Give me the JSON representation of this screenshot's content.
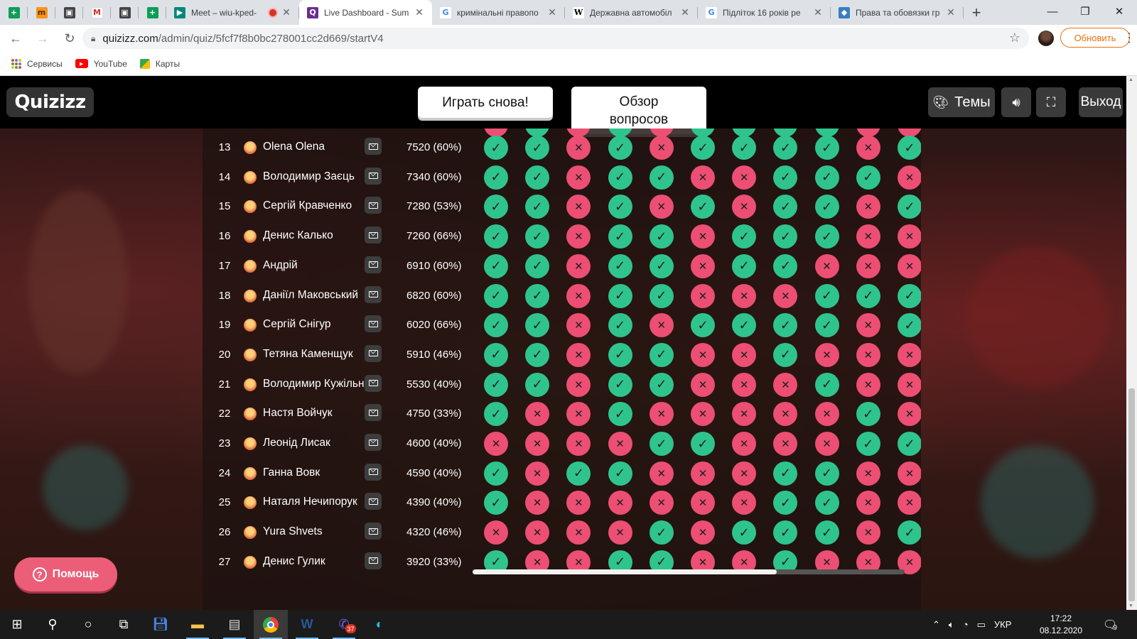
{
  "browser": {
    "tabs": [
      {
        "title": "Meet – wiu-kped-",
        "icon": "google-meet-icon",
        "recording": true
      },
      {
        "title": "Live Dashboard - Sum",
        "icon": "quizizz-icon",
        "active": true
      },
      {
        "title": "кримінальні правопо",
        "icon": "google-icon"
      },
      {
        "title": "Державна автомобіл",
        "icon": "wikipedia-icon"
      },
      {
        "title": "Підліток 16 років ре",
        "icon": "google-icon"
      },
      {
        "title": "Права та обовязки гр",
        "icon": "shield-icon"
      }
    ],
    "url_host": "quizizz.com",
    "url_path": "/admin/quiz/5fcf7f8b0bc278001cc2d669/startV4",
    "update_label": "Обновить",
    "bookmarks": [
      {
        "label": "Сервисы",
        "icon": "apps-grid-icon"
      },
      {
        "label": "YouTube",
        "icon": "youtube-icon"
      },
      {
        "label": "Карты",
        "icon": "maps-icon"
      }
    ]
  },
  "quizizz": {
    "logo": "Quizizz",
    "play_again": "Играть снова!",
    "review_questions": "Обзор вопросов",
    "themes": "Темы",
    "exit": "Выход",
    "help": "Помощь",
    "colors": {
      "correct": "#2fc48d",
      "incorrect": "#ec4f73"
    }
  },
  "rows": [
    {
      "rank": "13",
      "name": "Olena Olena",
      "score": "7520 (60%)",
      "answers": [
        1,
        1,
        0,
        1,
        0,
        1,
        1,
        1,
        1,
        0,
        1
      ]
    },
    {
      "rank": "14",
      "name": "Володимир Заєць",
      "score": "7340 (60%)",
      "answers": [
        1,
        1,
        0,
        1,
        1,
        0,
        0,
        1,
        1,
        1,
        0
      ]
    },
    {
      "rank": "15",
      "name": "Сергій Кравченко",
      "score": "7280 (53%)",
      "answers": [
        1,
        1,
        0,
        1,
        0,
        1,
        0,
        1,
        1,
        0,
        1
      ]
    },
    {
      "rank": "16",
      "name": "Денис Калько",
      "score": "7260 (66%)",
      "answers": [
        1,
        1,
        0,
        1,
        1,
        0,
        1,
        1,
        1,
        0,
        0
      ]
    },
    {
      "rank": "17",
      "name": "Андрій",
      "score": "6910 (60%)",
      "answers": [
        1,
        1,
        0,
        1,
        1,
        0,
        1,
        1,
        0,
        0,
        0
      ]
    },
    {
      "rank": "18",
      "name": "Даніїл Маковський",
      "score": "6820 (60%)",
      "answers": [
        1,
        1,
        0,
        1,
        1,
        0,
        0,
        0,
        1,
        1,
        1
      ]
    },
    {
      "rank": "19",
      "name": "Сергій Снігур",
      "score": "6020 (66%)",
      "answers": [
        1,
        1,
        0,
        1,
        0,
        1,
        1,
        1,
        1,
        0,
        1
      ]
    },
    {
      "rank": "20",
      "name": "Тетяна Каменщук",
      "score": "5910 (46%)",
      "answers": [
        1,
        1,
        0,
        1,
        1,
        0,
        0,
        1,
        0,
        0,
        0
      ]
    },
    {
      "rank": "21",
      "name": "Володимир Кужільн...",
      "score": "5530 (40%)",
      "answers": [
        1,
        1,
        0,
        1,
        1,
        0,
        0,
        0,
        1,
        0,
        0
      ]
    },
    {
      "rank": "22",
      "name": "Настя Войчук",
      "score": "4750 (33%)",
      "answers": [
        1,
        0,
        0,
        1,
        0,
        0,
        0,
        0,
        0,
        1,
        0
      ]
    },
    {
      "rank": "23",
      "name": "Леонід Лисак",
      "score": "4600 (40%)",
      "answers": [
        0,
        0,
        0,
        0,
        1,
        1,
        0,
        0,
        0,
        1,
        1
      ]
    },
    {
      "rank": "24",
      "name": "Ганна Вовк",
      "score": "4590 (40%)",
      "answers": [
        1,
        0,
        1,
        1,
        0,
        0,
        0,
        1,
        1,
        0,
        0
      ]
    },
    {
      "rank": "25",
      "name": "Наталя Нечипорук",
      "score": "4390 (40%)",
      "answers": [
        1,
        0,
        0,
        0,
        0,
        0,
        0,
        1,
        1,
        0,
        0
      ]
    },
    {
      "rank": "26",
      "name": "Yura Shvets",
      "score": "4320 (46%)",
      "answers": [
        0,
        0,
        0,
        0,
        1,
        0,
        1,
        1,
        1,
        0,
        1
      ]
    },
    {
      "rank": "27",
      "name": "Денис Гулик",
      "score": "3920 (33%)",
      "answers": [
        1,
        0,
        0,
        1,
        1,
        0,
        0,
        1,
        0,
        0,
        0
      ]
    }
  ],
  "peek_row_answers": [
    0,
    1,
    0,
    1,
    0,
    1,
    1,
    1,
    1,
    0,
    0
  ],
  "taskbar": {
    "apps": [
      "windows-start-icon",
      "search-icon",
      "cortana-icon",
      "task-view-icon",
      "save-icon",
      "file-explorer-icon",
      "notepad-icon",
      "chrome-icon",
      "word-icon",
      "viber-icon",
      "edge-icon"
    ],
    "viber_badge": "37",
    "lang": "УКР",
    "time": "17:22",
    "date": "08.12.2020",
    "notif_count": "9"
  }
}
